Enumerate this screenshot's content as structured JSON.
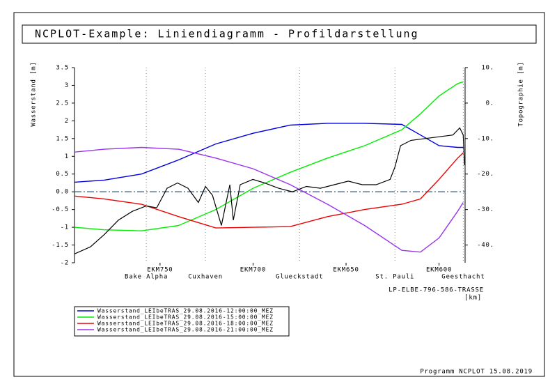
{
  "chart_data": {
    "type": "line",
    "title": "NCPLOT-Example: Liniendiagramm - Profildarstellung",
    "y_label": "Wasserstand [m]",
    "y2_label": "Topographie [m]",
    "x_label": "LP-ELBE-796-586-TRASSE",
    "x_unit": "[km]",
    "footer": "Programm NCPLOT 15.08.2019",
    "xlim": [
      796,
      586
    ],
    "xticks": [
      {
        "value": 750,
        "label": "EKM750"
      },
      {
        "value": 700,
        "label": "EKM700"
      },
      {
        "value": 650,
        "label": "EKM650"
      },
      {
        "value": 600,
        "label": "EKM600"
      }
    ],
    "markers": [
      {
        "x": 757.4,
        "label": "Bake Alpha"
      },
      {
        "x": 725.6,
        "label": "Cuxhaven"
      },
      {
        "x": 675,
        "label": "Glueckstadt"
      },
      {
        "x": 623.7,
        "label": "St. Pauli"
      },
      {
        "x": 587,
        "label": "Geesthacht"
      }
    ],
    "ylim": [
      -2,
      3.5
    ],
    "yticks": [
      3.5,
      3,
      2.5,
      2,
      1.5,
      1,
      0.5,
      {
        "value": 0,
        "label": "0.0"
      },
      -0.5,
      -1,
      -1.5,
      -2
    ],
    "y2lim": [
      -45,
      10
    ],
    "y2ticks": [
      {
        "value": 10,
        "label": "10."
      },
      {
        "value": 0,
        "label": "0."
      },
      {
        "value": -10,
        "label": "-10."
      },
      {
        "value": -20,
        "label": "-20."
      },
      {
        "value": -30,
        "label": "-30."
      },
      {
        "value": -40,
        "label": "-40."
      }
    ],
    "reference_line": 0,
    "series": [
      {
        "name": "Wasserstand_LEIbeTRAS_29.08.2016-12:00:00_MEZ",
        "color": "#0000dd",
        "x": [
          796,
          780,
          760,
          740,
          720,
          700,
          680,
          660,
          640,
          620,
          610,
          600,
          590,
          587
        ],
        "values": [
          0.27,
          0.33,
          0.5,
          0.9,
          1.35,
          1.65,
          1.88,
          1.93,
          1.93,
          1.9,
          1.6,
          1.3,
          1.25,
          1.25
        ]
      },
      {
        "name": "Wasserstand_LEIbeTRAS_29.08.2016-15:00:00_MEZ",
        "color": "#00ee00",
        "x": [
          796,
          780,
          760,
          740,
          720,
          700,
          680,
          660,
          640,
          620,
          610,
          600,
          590,
          587
        ],
        "values": [
          -1.0,
          -1.07,
          -1.1,
          -0.95,
          -0.5,
          0.1,
          0.55,
          0.95,
          1.3,
          1.75,
          2.2,
          2.7,
          3.05,
          3.1
        ]
      },
      {
        "name": "Wasserstand_LEIbeTRAS_29.08.2016-18:00:00_MEZ",
        "color": "#ee0000",
        "x": [
          796,
          780,
          760,
          740,
          720,
          700,
          680,
          660,
          640,
          620,
          610,
          600,
          590,
          587
        ],
        "values": [
          -0.12,
          -0.2,
          -0.35,
          -0.7,
          -1.02,
          -1.0,
          -0.98,
          -0.7,
          -0.5,
          -0.35,
          -0.2,
          0.35,
          0.95,
          1.1
        ]
      },
      {
        "name": "Wasserstand_LEIbeTRAS_29.08.2016-21:00:00_MEZ",
        "color": "#9933ee",
        "x": [
          796,
          780,
          760,
          740,
          720,
          700,
          680,
          660,
          640,
          620,
          610,
          600,
          590,
          587
        ],
        "values": [
          1.12,
          1.2,
          1.25,
          1.2,
          0.95,
          0.65,
          0.2,
          -0.35,
          -0.95,
          -1.65,
          -1.7,
          -1.3,
          -0.55,
          -0.3
        ]
      },
      {
        "color": "#000000",
        "axis": "y2",
        "x": [
          796,
          787.4,
          779.9,
          772.4,
          764.9,
          757.4,
          751.8,
          746.2,
          740.6,
          735,
          729.4,
          725.6,
          721.8,
          717,
          712.5,
          710.6,
          706.9,
          700.1,
          693.8,
          686.3,
          678.8,
          671.3,
          663.8,
          656.3,
          648.8,
          641.3,
          633.8,
          626.3,
          623.7,
          620.7,
          615.1,
          607.6,
          600.1,
          592.6,
          588.9,
          587,
          586.3
        ],
        "values": [
          -42.5,
          -40.5,
          -37,
          -33,
          -30.5,
          -29,
          -29.5,
          -24,
          -22.5,
          -24,
          -28,
          -23.5,
          -26,
          -34.5,
          -23,
          -33,
          -23,
          -21.5,
          -22.5,
          -24,
          -25,
          -23.5,
          -24,
          -23,
          -22,
          -23,
          -23,
          -21.5,
          -18,
          -12,
          -10.5,
          -10,
          -9.5,
          -9,
          -7,
          -9,
          -17.5
        ]
      }
    ]
  }
}
